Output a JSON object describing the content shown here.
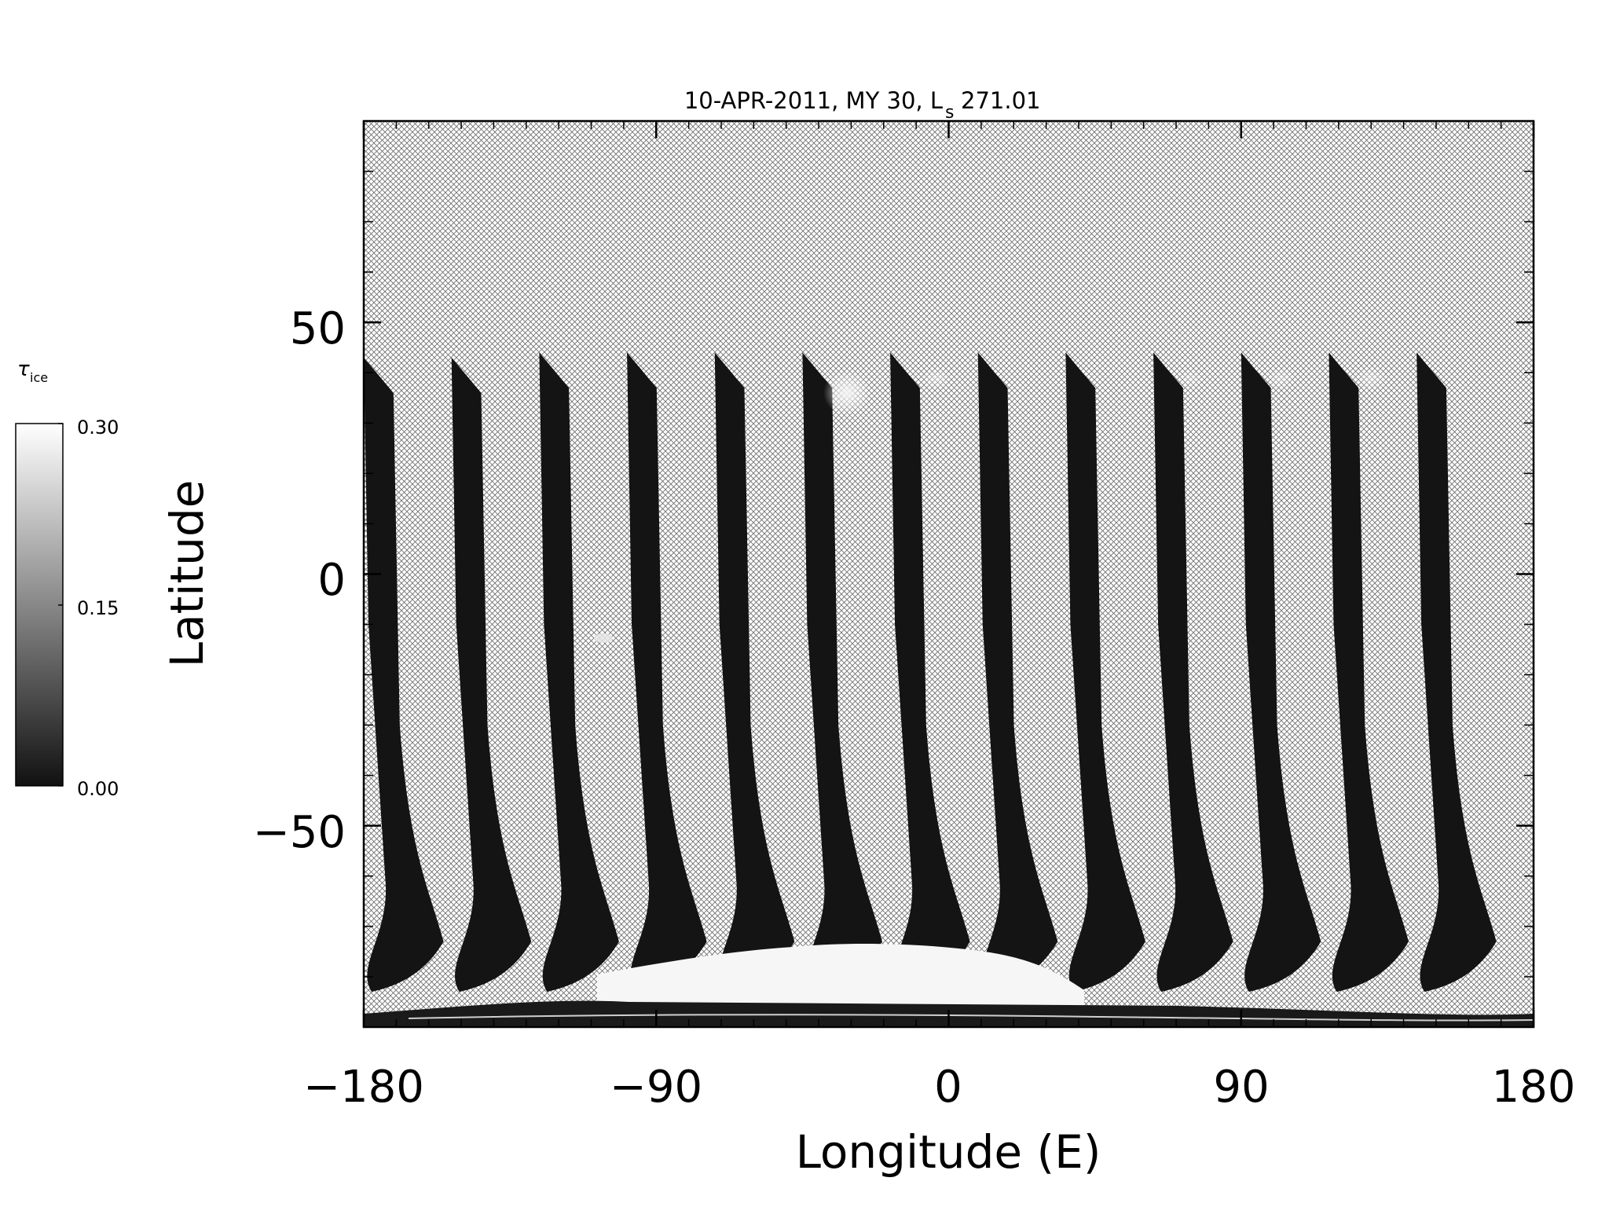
{
  "title": "10-APR-2011, MY 30,  L",
  "title_subscript": "s",
  "title_value": "271.01",
  "xlabel": "Longitude (E)",
  "ylabel": "Latitude",
  "colorbar": {
    "label": "τ",
    "label_subscript": "ice",
    "tick_labels": [
      "0.30",
      "0.15",
      "0.00"
    ],
    "range": [
      0.0,
      0.3
    ],
    "color_low": "#111111",
    "color_high": "#ffffff"
  },
  "chart_data": {
    "type": "heatmap",
    "xlim": [
      -180,
      180
    ],
    "ylim": [
      -90,
      90
    ],
    "x_ticks": [
      -180,
      -90,
      0,
      90,
      180
    ],
    "x_tick_labels": [
      "−180",
      "−90",
      "0",
      "90",
      "180"
    ],
    "y_ticks": [
      -50,
      0,
      50
    ],
    "y_tick_labels": [
      "−50",
      "0",
      "50"
    ],
    "hatch": "cross-hatch for no data",
    "swaths": [
      {
        "lon_top": -180,
        "lat_top": 43
      },
      {
        "lon_top": -153,
        "lat_top": 43
      },
      {
        "lon_top": -126,
        "lat_top": 44
      },
      {
        "lon_top": -99,
        "lat_top": 44
      },
      {
        "lon_top": -72,
        "lat_top": 44
      },
      {
        "lon_top": -45,
        "lat_top": 44
      },
      {
        "lon_top": -18,
        "lat_top": 44
      },
      {
        "lon_top": 9,
        "lat_top": 44
      },
      {
        "lon_top": 36,
        "lat_top": 44
      },
      {
        "lon_top": 63,
        "lat_top": 44
      },
      {
        "lon_top": 90,
        "lat_top": 44
      },
      {
        "lon_top": 117,
        "lat_top": 44
      },
      {
        "lon_top": 144,
        "lat_top": 44
      }
    ],
    "polar_cap": "bright ice region near -80 to -90 latitude, centered near lon -30 to 20"
  }
}
